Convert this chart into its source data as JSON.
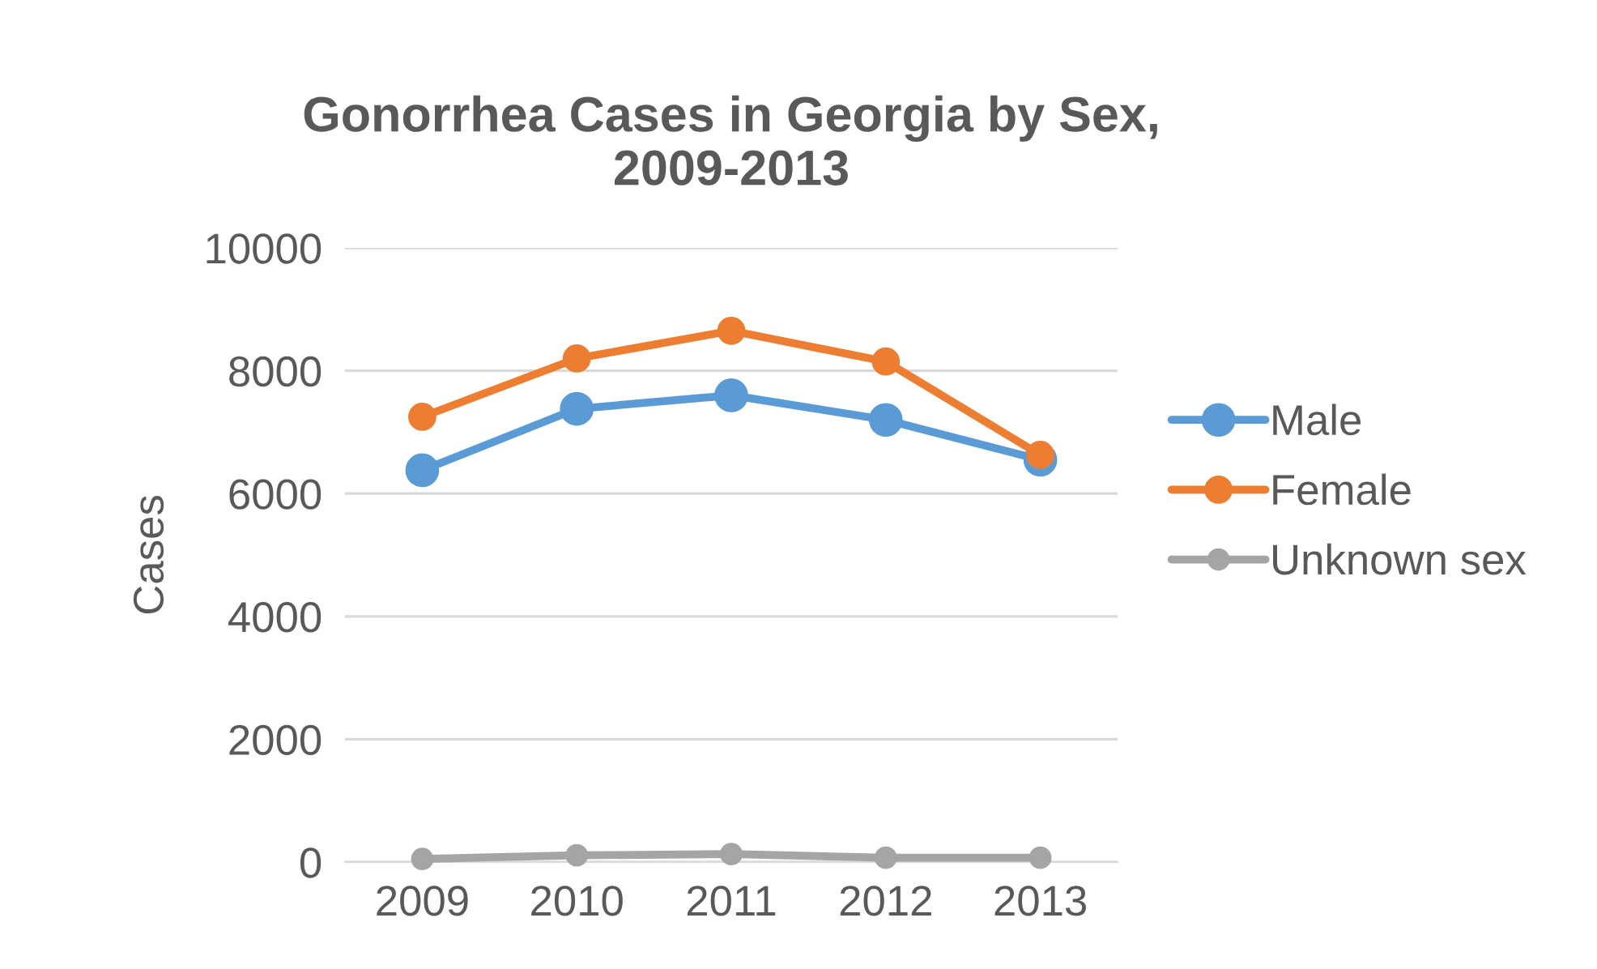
{
  "chart_data": {
    "type": "line",
    "title": "Gonorrhea Cases in Georgia by Sex,\n2009-2013",
    "ylabel": "Cases",
    "categories": [
      "2009",
      "2010",
      "2011",
      "2012",
      "2013"
    ],
    "series": [
      {
        "name": "Male",
        "color": "#5b9bd5",
        "values": [
          6380,
          7380,
          7600,
          7200,
          6550
        ]
      },
      {
        "name": "Female",
        "color": "#ed7d31",
        "values": [
          7250,
          8200,
          8650,
          8150,
          6630
        ]
      },
      {
        "name": "Unknown sex",
        "color": "#a5a5a5",
        "values": [
          50,
          110,
          130,
          70,
          70
        ]
      }
    ],
    "ylim": [
      0,
      10000
    ],
    "yticks": [
      0,
      2000,
      4000,
      6000,
      8000,
      10000
    ],
    "grid": "y",
    "legend": "right",
    "marker": "circle",
    "line_style": "solid"
  }
}
